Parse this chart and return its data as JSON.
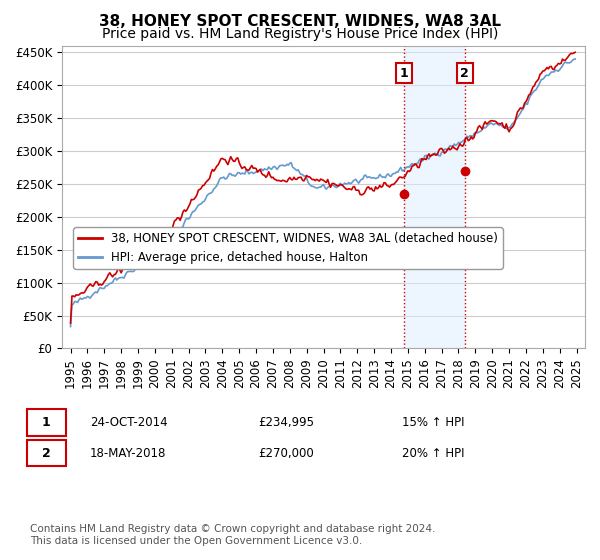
{
  "title": "38, HONEY SPOT CRESCENT, WIDNES, WA8 3AL",
  "subtitle": "Price paid vs. HM Land Registry's House Price Index (HPI)",
  "xlabel": "",
  "ylabel": "",
  "ylim": [
    0,
    460000
  ],
  "yticks": [
    0,
    50000,
    100000,
    150000,
    200000,
    250000,
    300000,
    350000,
    400000,
    450000
  ],
  "ytick_labels": [
    "£0",
    "£50K",
    "£100K",
    "£150K",
    "£200K",
    "£250K",
    "£300K",
    "£350K",
    "£400K",
    "£450K"
  ],
  "background_color": "#ffffff",
  "plot_bg_color": "#ffffff",
  "grid_color": "#cccccc",
  "legend_entries": [
    "38, HONEY SPOT CRESCENT, WIDNES, WA8 3AL (detached house)",
    "HPI: Average price, detached house, Halton"
  ],
  "line1_color": "#cc0000",
  "line2_color": "#6699cc",
  "shade_color": "#ddeeff",
  "marker1_color": "#cc0000",
  "marker2_color": "#cc0000",
  "vline_color": "#cc0000",
  "purchase1": {
    "date": "24-OCT-2014",
    "price": 234995,
    "label": "1",
    "pct": "15% ↑ HPI"
  },
  "purchase2": {
    "date": "18-MAY-2018",
    "price": 270000,
    "label": "2",
    "pct": "20% ↑ HPI"
  },
  "footnote": "Contains HM Land Registry data © Crown copyright and database right 2024.\nThis data is licensed under the Open Government Licence v3.0.",
  "title_fontsize": 11,
  "subtitle_fontsize": 10,
  "tick_fontsize": 8.5,
  "legend_fontsize": 8.5,
  "footnote_fontsize": 7.5
}
